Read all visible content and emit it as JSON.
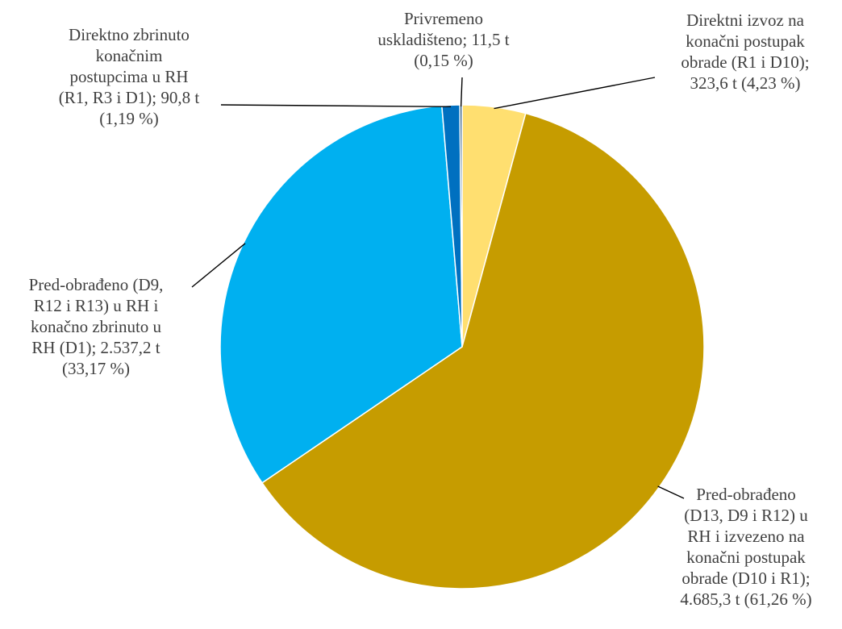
{
  "chart_data": {
    "type": "pie",
    "title": "",
    "unit": "t",
    "slices": [
      {
        "label": "Direktni izvoz na konačni postupak obrade (R1 i D10); 323,6 t (4,23 %)",
        "value": 323.6,
        "percent": 4.23,
        "color": "#FFDF70"
      },
      {
        "label": "Pred-obrađeno (D13, D9 i R12) u RH i izvezeno na konačni postupak obrade (D10 i R1); 4.685,3 t (61,26 %)",
        "value": 4685.3,
        "percent": 61.26,
        "color": "#C69C00"
      },
      {
        "label": "Pred-obrađeno (D9, R12 i R13) u RH i konačno zbrinuto u RH (D1); 2.537,2 t (33,17 %)",
        "value": 2537.2,
        "percent": 33.17,
        "color": "#00B0F0"
      },
      {
        "label": "Directno zbrinuto konačnim postupcima u RH (R1, R3 i D1); 90,8 t (1,19 %)",
        "value": 90.8,
        "percent": 1.19,
        "color": "#0070C0"
      },
      {
        "label": "Privremeno uskladišteno; 11,5 t (0,15 %)",
        "value": 11.5,
        "percent": 0.15,
        "color": "#1F4E79"
      }
    ]
  },
  "labels": {
    "slice0": "Direktni izvoz na\nkonačni postupak\nobrade (R1 i D10);\n323,6 t (4,23 %)",
    "slice1": "Pred-obrađeno\n(D13, D9 i R12) u\nRH i izvezeno na\nkonačni postupak\nobrade (D10 i R1);\n4.685,3 t (61,26 %)",
    "slice2": "Pred-obrađeno (D9,\nR12 i R13) u RH i\nkonačno zbrinuto u\nRH (D1); 2.537,2 t\n(33,17 %)",
    "slice3": "Direktno zbrinuto\nkonačnim\npostupcima u RH\n(R1, R3 i D1); 90,8 t\n(1,19 %)",
    "slice4": "Privremeno\nuskladišteno; 11,5 t\n(0,15 %)"
  }
}
